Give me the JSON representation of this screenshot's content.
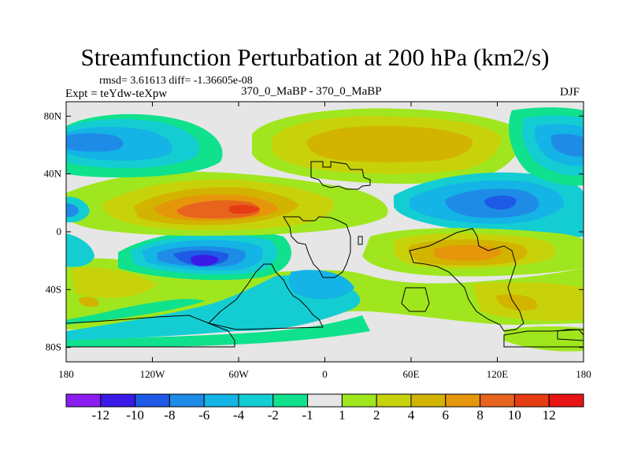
{
  "chart_data": {
    "type": "heatmap",
    "title": "Streamfunction Perturbation at 200 hPa (km2/s)",
    "stats_text": "rmsd= 3.61613 diff= -1.36605e-08",
    "left_label": "Expt = teYdw-teXpw",
    "center_label": "370_0_MaBP - 370_0_MaBP",
    "right_label": "DJF",
    "x_range": [
      -180,
      180
    ],
    "y_range": [
      -90,
      90
    ],
    "x_ticks": [
      {
        "value": -180,
        "label": "180"
      },
      {
        "value": -120,
        "label": "120W"
      },
      {
        "value": -60,
        "label": "60W"
      },
      {
        "value": 0,
        "label": "0"
      },
      {
        "value": 60,
        "label": "60E"
      },
      {
        "value": 120,
        "label": "120E"
      },
      {
        "value": 180,
        "label": "180"
      }
    ],
    "y_ticks": [
      {
        "value": 80,
        "label": "80N"
      },
      {
        "value": 40,
        "label": "40N"
      },
      {
        "value": 0,
        "label": "0"
      },
      {
        "value": -40,
        "label": "40S"
      },
      {
        "value": -80,
        "label": "80S"
      }
    ],
    "colorbar": {
      "levels": [
        -12,
        -10,
        -8,
        -6,
        -4,
        -2,
        -1,
        1,
        2,
        4,
        6,
        8,
        10,
        12
      ],
      "labels": [
        "-12",
        "-10",
        "-8",
        "-6",
        "-4",
        "-2",
        "-1",
        "1",
        "2",
        "4",
        "6",
        "8",
        "10",
        "12"
      ],
      "colors": [
        "#8a1ef0",
        "#3a1ae6",
        "#1e5ae6",
        "#1e8ce6",
        "#14b4e6",
        "#14cdd2",
        "#0fe18c",
        "#e6e6e6",
        "#a0e61e",
        "#c8d20a",
        "#d2b400",
        "#e6960a",
        "#e6641e",
        "#e63c14",
        "#e61414"
      ]
    },
    "features": [
      {
        "label": "anticyclone",
        "lon": -80,
        "lat": 20,
        "peak": 10
      },
      {
        "label": "cyclone",
        "lon": -80,
        "lat": -20,
        "peak": -10
      },
      {
        "label": "cyclone",
        "lon": 115,
        "lat": 20,
        "peak": -8
      },
      {
        "label": "anticyclone",
        "lon": 90,
        "lat": -18,
        "peak": 6
      },
      {
        "label": "anticyclone",
        "lon": 40,
        "lat": 58,
        "peak": 4
      },
      {
        "label": "cyclone",
        "lon": -165,
        "lat": 60,
        "peak": -6
      },
      {
        "label": "cyclone",
        "lon": 170,
        "lat": 60,
        "peak": -6
      },
      {
        "label": "cyclone",
        "lon": -10,
        "lat": -35,
        "peak": -4
      }
    ]
  }
}
